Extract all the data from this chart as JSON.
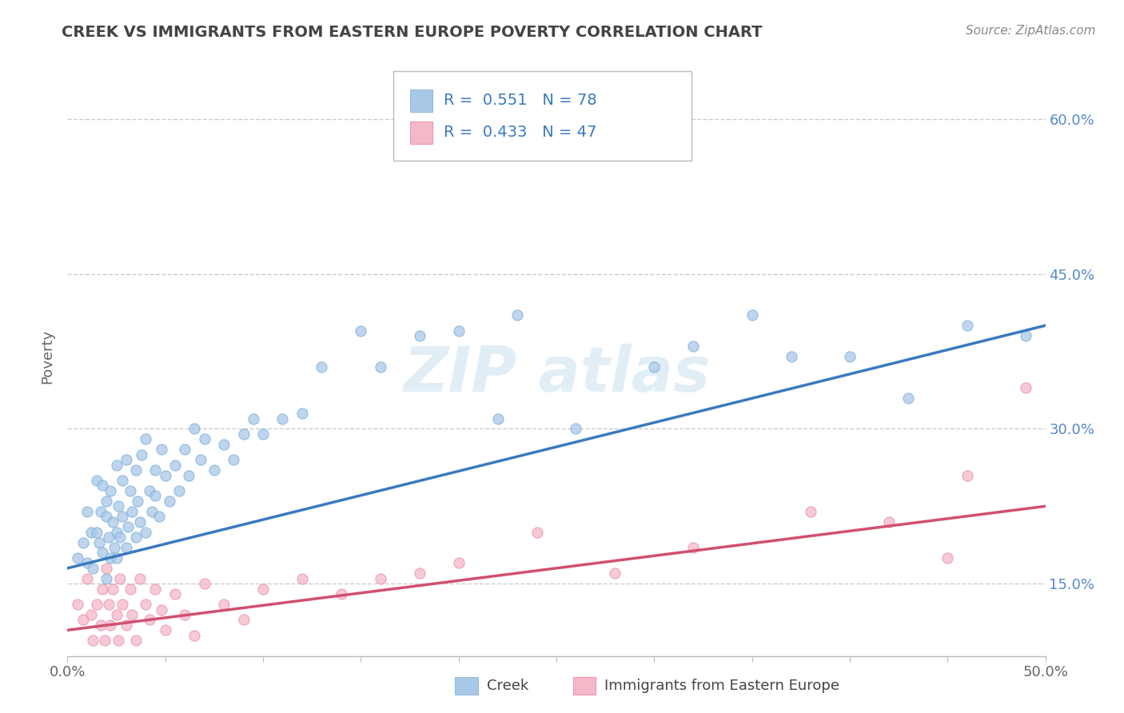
{
  "title": "CREEK VS IMMIGRANTS FROM EASTERN EUROPE POVERTY CORRELATION CHART",
  "source": "Source: ZipAtlas.com",
  "ylabel": "Poverty",
  "xlim": [
    0.0,
    0.5
  ],
  "ylim": [
    0.08,
    0.66
  ],
  "xticks": [
    0.0,
    0.05,
    0.1,
    0.15,
    0.2,
    0.25,
    0.3,
    0.35,
    0.4,
    0.45,
    0.5
  ],
  "xticklabels_major": {
    "0.0": "0.0%",
    "0.5": "50.0%"
  },
  "yticks": [
    0.15,
    0.3,
    0.45,
    0.6
  ],
  "yticklabels": [
    "15.0%",
    "30.0%",
    "45.0%",
    "60.0%"
  ],
  "grid_color": "#cccccc",
  "background_color": "#ffffff",
  "creek_R": "0.551",
  "creek_N": "78",
  "eastern_R": "0.433",
  "eastern_N": "47",
  "creek_color": "#a8c8e8",
  "creek_edge_color": "#7aaed6",
  "creek_line_color": "#3a7abf",
  "eastern_color": "#f5b8c8",
  "eastern_edge_color": "#e890a8",
  "eastern_line_color": "#d05070",
  "creek_x": [
    0.005,
    0.008,
    0.01,
    0.01,
    0.012,
    0.013,
    0.015,
    0.015,
    0.016,
    0.017,
    0.018,
    0.018,
    0.02,
    0.02,
    0.02,
    0.021,
    0.022,
    0.022,
    0.023,
    0.024,
    0.025,
    0.025,
    0.025,
    0.026,
    0.027,
    0.028,
    0.028,
    0.03,
    0.03,
    0.031,
    0.032,
    0.033,
    0.035,
    0.035,
    0.036,
    0.037,
    0.038,
    0.04,
    0.04,
    0.042,
    0.043,
    0.045,
    0.045,
    0.047,
    0.048,
    0.05,
    0.052,
    0.055,
    0.057,
    0.06,
    0.062,
    0.065,
    0.068,
    0.07,
    0.075,
    0.08,
    0.085,
    0.09,
    0.095,
    0.1,
    0.11,
    0.12,
    0.13,
    0.15,
    0.16,
    0.18,
    0.2,
    0.22,
    0.23,
    0.26,
    0.3,
    0.32,
    0.35,
    0.37,
    0.4,
    0.43,
    0.46,
    0.49
  ],
  "creek_y": [
    0.175,
    0.19,
    0.22,
    0.17,
    0.2,
    0.165,
    0.2,
    0.25,
    0.19,
    0.22,
    0.18,
    0.245,
    0.155,
    0.215,
    0.23,
    0.195,
    0.175,
    0.24,
    0.21,
    0.185,
    0.2,
    0.175,
    0.265,
    0.225,
    0.195,
    0.25,
    0.215,
    0.185,
    0.27,
    0.205,
    0.24,
    0.22,
    0.195,
    0.26,
    0.23,
    0.21,
    0.275,
    0.2,
    0.29,
    0.24,
    0.22,
    0.26,
    0.235,
    0.215,
    0.28,
    0.255,
    0.23,
    0.265,
    0.24,
    0.28,
    0.255,
    0.3,
    0.27,
    0.29,
    0.26,
    0.285,
    0.27,
    0.295,
    0.31,
    0.295,
    0.31,
    0.315,
    0.36,
    0.395,
    0.36,
    0.39,
    0.395,
    0.31,
    0.41,
    0.3,
    0.36,
    0.38,
    0.41,
    0.37,
    0.37,
    0.33,
    0.4,
    0.39
  ],
  "eastern_x": [
    0.005,
    0.008,
    0.01,
    0.012,
    0.013,
    0.015,
    0.017,
    0.018,
    0.019,
    0.02,
    0.021,
    0.022,
    0.023,
    0.025,
    0.026,
    0.027,
    0.028,
    0.03,
    0.032,
    0.033,
    0.035,
    0.037,
    0.04,
    0.042,
    0.045,
    0.048,
    0.05,
    0.055,
    0.06,
    0.065,
    0.07,
    0.08,
    0.09,
    0.1,
    0.12,
    0.14,
    0.16,
    0.18,
    0.2,
    0.24,
    0.28,
    0.32,
    0.38,
    0.42,
    0.45,
    0.46,
    0.49
  ],
  "eastern_y": [
    0.13,
    0.115,
    0.155,
    0.12,
    0.095,
    0.13,
    0.11,
    0.145,
    0.095,
    0.165,
    0.13,
    0.11,
    0.145,
    0.12,
    0.095,
    0.155,
    0.13,
    0.11,
    0.145,
    0.12,
    0.095,
    0.155,
    0.13,
    0.115,
    0.145,
    0.125,
    0.105,
    0.14,
    0.12,
    0.1,
    0.15,
    0.13,
    0.115,
    0.145,
    0.155,
    0.14,
    0.155,
    0.16,
    0.17,
    0.2,
    0.16,
    0.185,
    0.22,
    0.21,
    0.175,
    0.255,
    0.34
  ],
  "creek_trend_x": [
    0.0,
    0.5
  ],
  "creek_trend_y": [
    0.165,
    0.4
  ],
  "eastern_trend_x": [
    0.0,
    0.5
  ],
  "eastern_trend_y": [
    0.105,
    0.225
  ]
}
